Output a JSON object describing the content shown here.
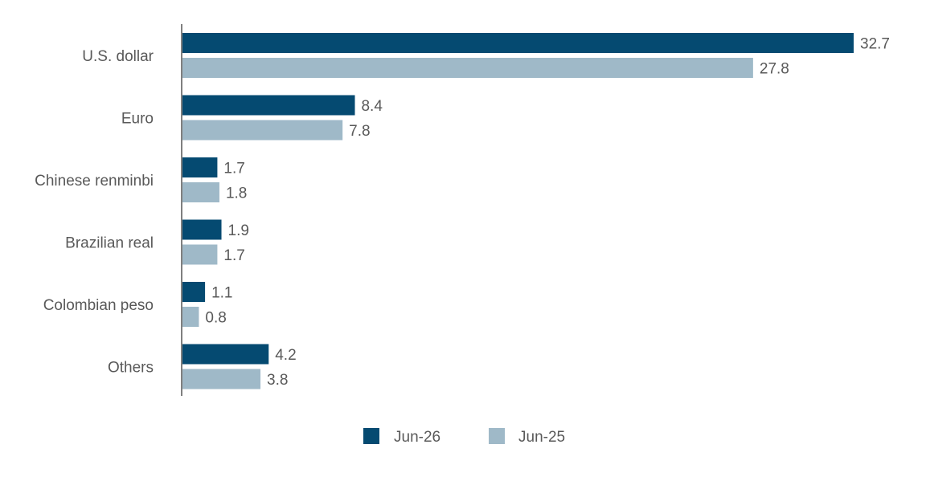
{
  "chart_data": {
    "type": "bar",
    "orientation": "horizontal",
    "categories": [
      "U.S. dollar",
      "Euro",
      "Chinese renminbi",
      "Brazilian real",
      "Colombian peso",
      "Others"
    ],
    "series": [
      {
        "name": "Jun-26",
        "color": "#054a71",
        "values": [
          32.7,
          8.4,
          1.7,
          1.9,
          1.1,
          4.2
        ],
        "labels": [
          "32.7",
          "8.4",
          "1.7",
          "1.9",
          "1.1",
          "4.2"
        ]
      },
      {
        "name": "Jun-25",
        "color": "#9fb9c8",
        "values": [
          27.8,
          7.8,
          1.8,
          1.7,
          0.8,
          3.8
        ],
        "labels": [
          "27.8",
          "7.8",
          "1.8",
          "1.7",
          "0.8",
          "3.8"
        ]
      }
    ],
    "xlim": [
      0,
      32.7
    ],
    "axis_color": "#7f7f7f",
    "grid": false,
    "legend_position": "bottom-center",
    "title": "",
    "xlabel": "",
    "ylabel": ""
  }
}
